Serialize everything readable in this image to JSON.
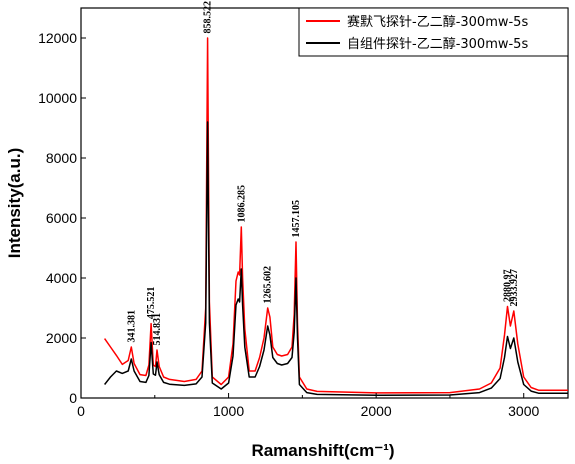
{
  "chart_data": {
    "type": "line",
    "xlabel": "Ramanshift(cm⁻¹)",
    "ylabel": "Intensity(a.u.)",
    "xlim": [
      0,
      3300
    ],
    "ylim": [
      0,
      13000
    ],
    "xticks": [
      0,
      1000,
      2000,
      3000
    ],
    "yticks": [
      0,
      2000,
      4000,
      6000,
      8000,
      10000,
      12000
    ],
    "legend_position": "top-right",
    "series": [
      {
        "name": "赛默飞探针-乙二醇-300mw-5s",
        "color": "#ff0000",
        "points": [
          [
            160,
            1980
          ],
          [
            200,
            1700
          ],
          [
            240,
            1420
          ],
          [
            280,
            1120
          ],
          [
            320,
            1250
          ],
          [
            341,
            1700
          ],
          [
            360,
            1150
          ],
          [
            400,
            780
          ],
          [
            440,
            750
          ],
          [
            460,
            1100
          ],
          [
            475,
            2480
          ],
          [
            490,
            1100
          ],
          [
            505,
            1050
          ],
          [
            515,
            1600
          ],
          [
            530,
            1050
          ],
          [
            560,
            700
          ],
          [
            600,
            620
          ],
          [
            700,
            550
          ],
          [
            780,
            620
          ],
          [
            820,
            900
          ],
          [
            845,
            3000
          ],
          [
            858,
            12000
          ],
          [
            870,
            3200
          ],
          [
            890,
            700
          ],
          [
            950,
            450
          ],
          [
            1000,
            700
          ],
          [
            1030,
            1800
          ],
          [
            1050,
            3900
          ],
          [
            1065,
            4200
          ],
          [
            1075,
            4100
          ],
          [
            1086,
            5700
          ],
          [
            1095,
            4000
          ],
          [
            1110,
            2300
          ],
          [
            1140,
            900
          ],
          [
            1180,
            900
          ],
          [
            1210,
            1350
          ],
          [
            1240,
            2000
          ],
          [
            1265,
            3000
          ],
          [
            1280,
            2700
          ],
          [
            1300,
            1700
          ],
          [
            1330,
            1450
          ],
          [
            1360,
            1400
          ],
          [
            1400,
            1450
          ],
          [
            1430,
            1700
          ],
          [
            1445,
            2800
          ],
          [
            1457,
            5200
          ],
          [
            1467,
            2500
          ],
          [
            1480,
            700
          ],
          [
            1530,
            300
          ],
          [
            1600,
            220
          ],
          [
            2000,
            170
          ],
          [
            2500,
            180
          ],
          [
            2700,
            300
          ],
          [
            2780,
            500
          ],
          [
            2840,
            1000
          ],
          [
            2870,
            2100
          ],
          [
            2890,
            3050
          ],
          [
            2910,
            2400
          ],
          [
            2933,
            2900
          ],
          [
            2960,
            1800
          ],
          [
            3000,
            700
          ],
          [
            3050,
            350
          ],
          [
            3100,
            260
          ],
          [
            3300,
            260
          ]
        ]
      },
      {
        "name": "自组件探针-乙二醇-300mw-5s",
        "color": "#000000",
        "points": [
          [
            160,
            450
          ],
          [
            200,
            700
          ],
          [
            240,
            900
          ],
          [
            280,
            820
          ],
          [
            320,
            900
          ],
          [
            341,
            1300
          ],
          [
            360,
            900
          ],
          [
            400,
            550
          ],
          [
            440,
            520
          ],
          [
            460,
            750
          ],
          [
            475,
            1850
          ],
          [
            490,
            800
          ],
          [
            505,
            760
          ],
          [
            515,
            1200
          ],
          [
            530,
            780
          ],
          [
            560,
            520
          ],
          [
            600,
            460
          ],
          [
            700,
            420
          ],
          [
            780,
            470
          ],
          [
            820,
            700
          ],
          [
            845,
            2500
          ],
          [
            858,
            9200
          ],
          [
            870,
            2500
          ],
          [
            890,
            500
          ],
          [
            950,
            300
          ],
          [
            1000,
            500
          ],
          [
            1030,
            1400
          ],
          [
            1050,
            3100
          ],
          [
            1065,
            3300
          ],
          [
            1075,
            3200
          ],
          [
            1086,
            4300
          ],
          [
            1095,
            3100
          ],
          [
            1110,
            1700
          ],
          [
            1140,
            700
          ],
          [
            1180,
            700
          ],
          [
            1210,
            1050
          ],
          [
            1240,
            1600
          ],
          [
            1265,
            2400
          ],
          [
            1280,
            2100
          ],
          [
            1300,
            1350
          ],
          [
            1330,
            1150
          ],
          [
            1360,
            1100
          ],
          [
            1400,
            1150
          ],
          [
            1430,
            1350
          ],
          [
            1445,
            2200
          ],
          [
            1457,
            4000
          ],
          [
            1467,
            2000
          ],
          [
            1480,
            450
          ],
          [
            1530,
            180
          ],
          [
            1600,
            120
          ],
          [
            2000,
            90
          ],
          [
            2500,
            100
          ],
          [
            2700,
            180
          ],
          [
            2780,
            330
          ],
          [
            2840,
            650
          ],
          [
            2870,
            1350
          ],
          [
            2890,
            2050
          ],
          [
            2910,
            1650
          ],
          [
            2933,
            2000
          ],
          [
            2960,
            1200
          ],
          [
            3000,
            450
          ],
          [
            3050,
            230
          ],
          [
            3100,
            160
          ],
          [
            3300,
            160
          ]
        ]
      }
    ],
    "annotations": [
      {
        "text": "341.381",
        "x": 341,
        "y": 1750
      },
      {
        "text": "475.521",
        "x": 475,
        "y": 2530
      },
      {
        "text": "514.831",
        "x": 515,
        "y": 1650
      },
      {
        "text": "858.522",
        "x": 858,
        "y": 12050
      },
      {
        "text": "1086.285",
        "x": 1086,
        "y": 5750
      },
      {
        "text": "1265.602",
        "x": 1265,
        "y": 3050
      },
      {
        "text": "1457.105",
        "x": 1457,
        "y": 5250
      },
      {
        "text": "2880.97",
        "x": 2890,
        "y": 3100
      },
      {
        "text": "2933.927",
        "x": 2933,
        "y": 2950
      }
    ]
  }
}
